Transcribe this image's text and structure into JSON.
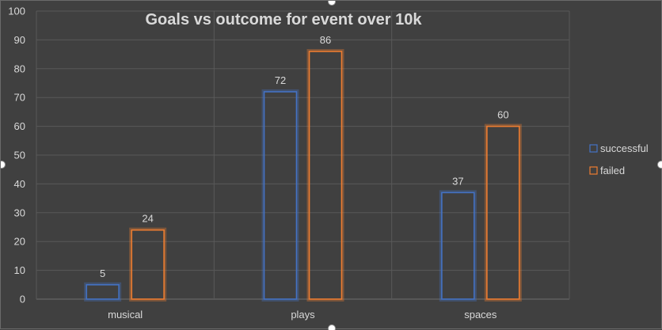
{
  "chart_data": {
    "type": "bar",
    "title": "Goals vs outcome for event over 10k",
    "xlabel": "",
    "ylabel": "",
    "categories": [
      "musical",
      "plays",
      "spaces"
    ],
    "series": [
      {
        "name": "successful",
        "values": [
          5,
          72,
          37
        ],
        "color": "#4472c4"
      },
      {
        "name": "failed",
        "values": [
          24,
          86,
          60
        ],
        "color": "#ed7d31"
      }
    ],
    "ylim": [
      0,
      100
    ],
    "yticks": [
      0,
      10,
      20,
      30,
      40,
      50,
      60,
      70,
      80,
      90,
      100
    ],
    "grid": true,
    "legend_position": "right",
    "data_labels": true,
    "colors": {
      "background": "#404040",
      "grid": "#595959",
      "text": "#d9d9d9"
    }
  }
}
